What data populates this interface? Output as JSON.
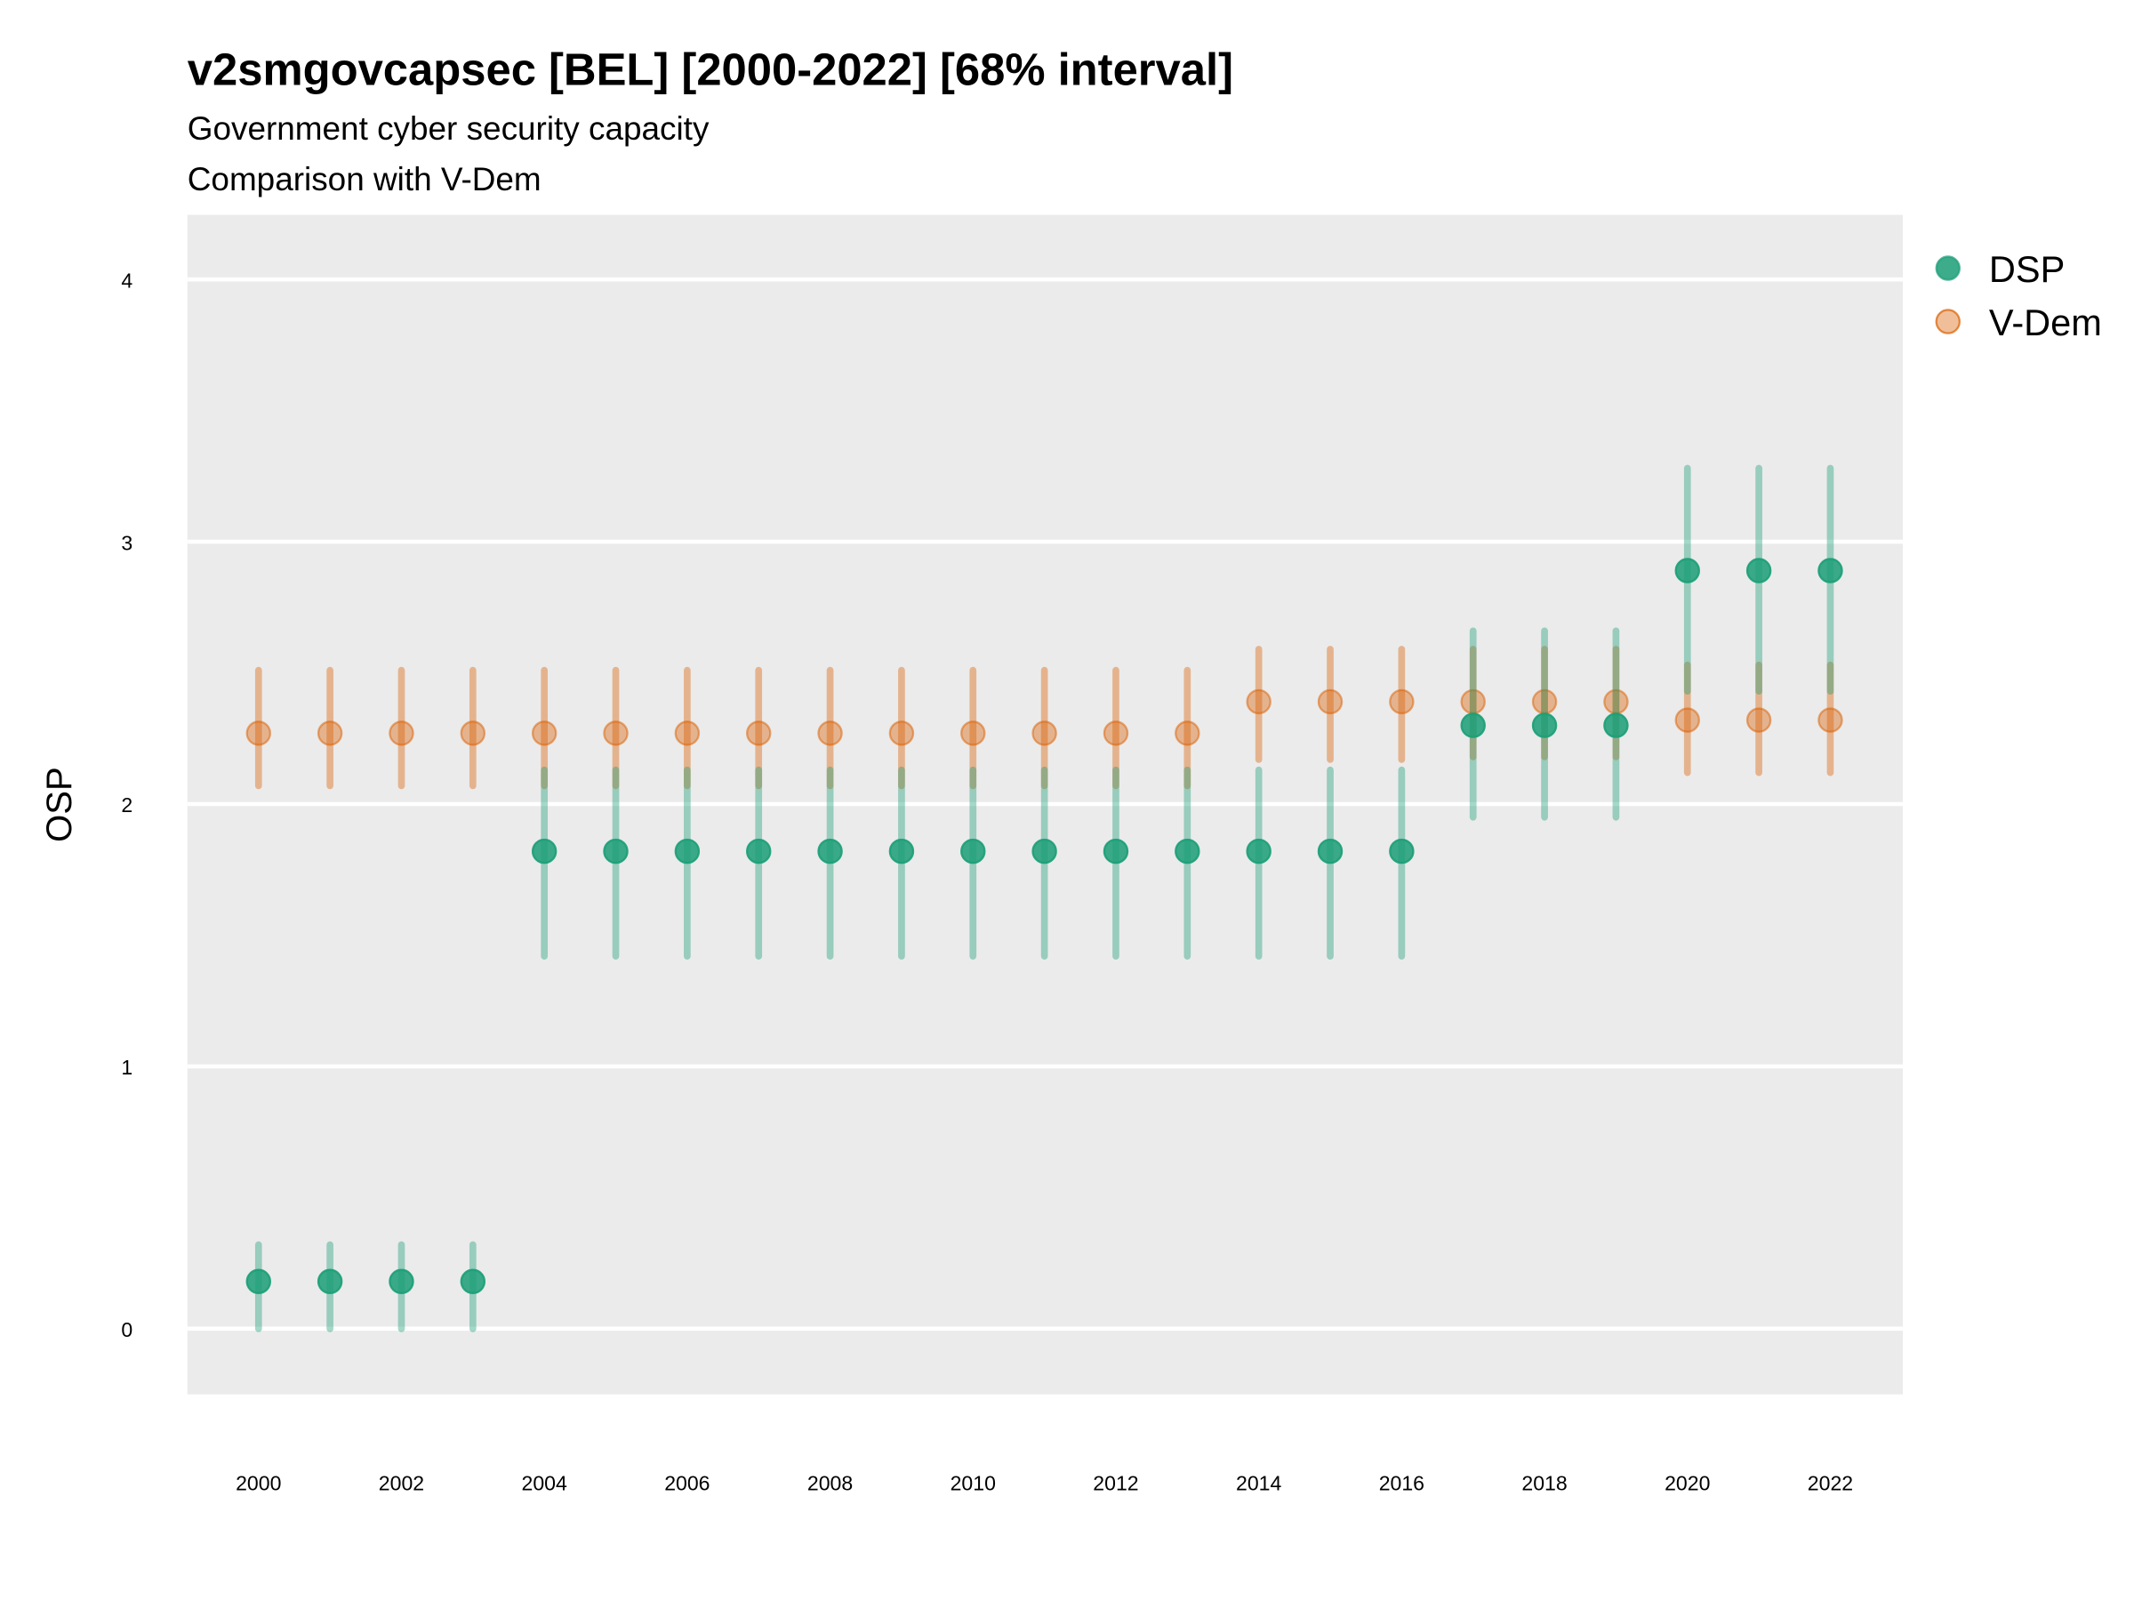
{
  "chart_data": {
    "type": "scatter",
    "title": "v2smgovcapsec [BEL] [2000-2022] [68% interval]",
    "subtitle": "Government cyber security capacity",
    "caption_line": "Comparison with V-Dem",
    "xlabel": "",
    "ylabel": "OSP",
    "xlim": [
      1999,
      2023
    ],
    "ylim": [
      -0.25,
      4.25
    ],
    "x_ticks": [
      2000,
      2002,
      2004,
      2006,
      2008,
      2010,
      2012,
      2014,
      2016,
      2018,
      2020,
      2022
    ],
    "y_ticks": [
      0,
      1,
      2,
      3,
      4
    ],
    "grid": true,
    "legend_position": "right-top",
    "series": [
      {
        "name": "DSP",
        "color": "#1b9e77",
        "x": [
          2000,
          2001,
          2002,
          2003,
          2004,
          2005,
          2006,
          2007,
          2008,
          2009,
          2010,
          2011,
          2012,
          2013,
          2014,
          2015,
          2016,
          2017,
          2018,
          2019,
          2020,
          2021,
          2022
        ],
        "y": [
          0.18,
          0.18,
          0.18,
          0.18,
          1.82,
          1.82,
          1.82,
          1.82,
          1.82,
          1.82,
          1.82,
          1.82,
          1.82,
          1.82,
          1.82,
          1.82,
          1.82,
          2.3,
          2.3,
          2.3,
          2.89,
          2.89,
          2.89
        ],
        "lower": [
          0.0,
          0.0,
          0.0,
          0.0,
          1.42,
          1.42,
          1.42,
          1.42,
          1.42,
          1.42,
          1.42,
          1.42,
          1.42,
          1.42,
          1.42,
          1.42,
          1.42,
          1.95,
          1.95,
          1.95,
          2.43,
          2.43,
          2.43
        ],
        "upper": [
          0.32,
          0.32,
          0.32,
          0.32,
          2.13,
          2.13,
          2.13,
          2.13,
          2.13,
          2.13,
          2.13,
          2.13,
          2.13,
          2.13,
          2.13,
          2.13,
          2.13,
          2.66,
          2.66,
          2.66,
          3.28,
          3.28,
          3.28
        ]
      },
      {
        "name": "V-Dem",
        "color": "#d95f02",
        "x": [
          2000,
          2001,
          2002,
          2003,
          2004,
          2005,
          2006,
          2007,
          2008,
          2009,
          2010,
          2011,
          2012,
          2013,
          2014,
          2015,
          2016,
          2017,
          2018,
          2019,
          2020,
          2021,
          2022
        ],
        "y": [
          2.27,
          2.27,
          2.27,
          2.27,
          2.27,
          2.27,
          2.27,
          2.27,
          2.27,
          2.27,
          2.27,
          2.27,
          2.27,
          2.27,
          2.39,
          2.39,
          2.39,
          2.39,
          2.39,
          2.39,
          2.32,
          2.32,
          2.32
        ],
        "lower": [
          2.07,
          2.07,
          2.07,
          2.07,
          2.07,
          2.07,
          2.07,
          2.07,
          2.07,
          2.07,
          2.07,
          2.07,
          2.07,
          2.07,
          2.17,
          2.17,
          2.17,
          2.18,
          2.18,
          2.18,
          2.12,
          2.12,
          2.12
        ],
        "upper": [
          2.51,
          2.51,
          2.51,
          2.51,
          2.51,
          2.51,
          2.51,
          2.51,
          2.51,
          2.51,
          2.51,
          2.51,
          2.51,
          2.51,
          2.59,
          2.59,
          2.59,
          2.59,
          2.59,
          2.59,
          2.53,
          2.53,
          2.53
        ]
      }
    ]
  }
}
